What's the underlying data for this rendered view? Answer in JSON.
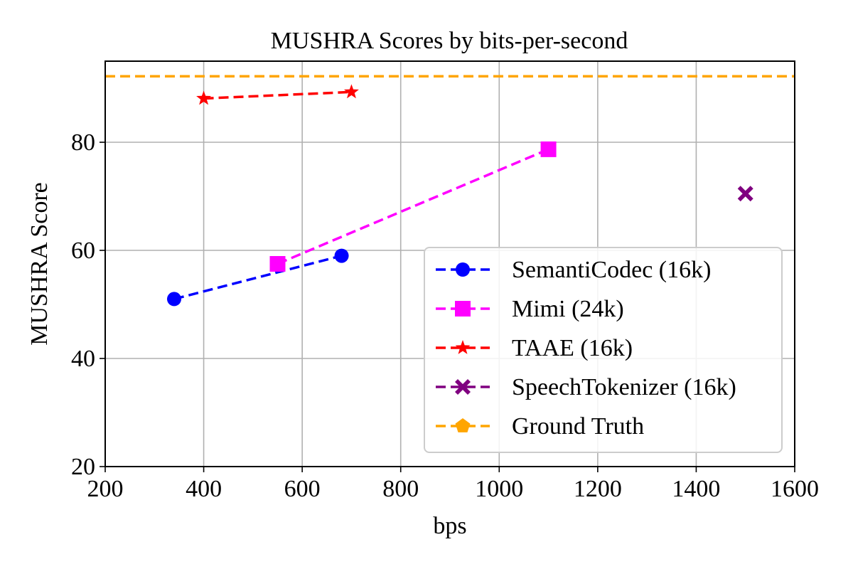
{
  "chart_data": {
    "type": "line",
    "title": "MUSHRA Scores by bits-per-second",
    "xlabel": "bps",
    "ylabel": "MUSHRA Score",
    "xlim": [
      200,
      1600
    ],
    "ylim": [
      20,
      95
    ],
    "xticks": [
      200,
      400,
      600,
      800,
      1000,
      1200,
      1400,
      1600
    ],
    "yticks": [
      20,
      40,
      60,
      80
    ],
    "grid": true,
    "legend_position": "lower-right",
    "series": [
      {
        "name": "SemantiCodec (16k)",
        "color": "#0000ff",
        "marker": "circle",
        "line": "dashed",
        "x": [
          340,
          680
        ],
        "y": [
          51,
          59
        ]
      },
      {
        "name": "Mimi (24k)",
        "color": "#ff00ff",
        "marker": "square",
        "line": "dashed",
        "x": [
          550,
          1100
        ],
        "y": [
          57.5,
          78.7
        ]
      },
      {
        "name": "TAAE (16k)",
        "color": "#ff0000",
        "marker": "star",
        "line": "dashed",
        "x": [
          400,
          700
        ],
        "y": [
          88.1,
          89.3
        ]
      },
      {
        "name": "SpeechTokenizer (16k)",
        "color": "#800080",
        "marker": "x-filled",
        "line": "dashed",
        "x": [
          1500
        ],
        "y": [
          70.5
        ]
      },
      {
        "name": "Ground Truth",
        "color": "#ffa500",
        "marker": "pentagon",
        "line": "dashed",
        "hline": 92.2
      }
    ]
  }
}
